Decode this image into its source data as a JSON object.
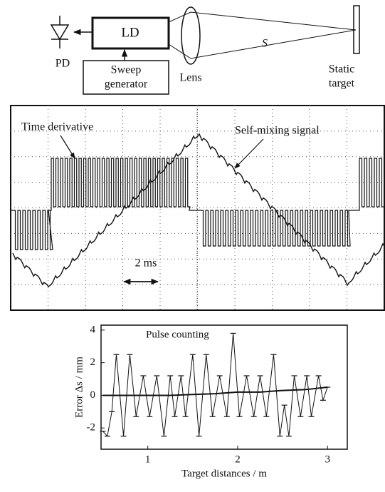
{
  "diagram": {
    "pd": "PD",
    "ld": "LD",
    "sweep": [
      "Sweep",
      "generator"
    ],
    "lens": "Lens",
    "distance": "S",
    "target": [
      "Static",
      "target"
    ]
  },
  "oscilloscope": {
    "derivative_label": "Time derivative",
    "signal_label": "Self-mixing signal",
    "scale_label": "2 ms"
  },
  "chart_data": {
    "type": "line",
    "xlabel": "Target distances / m",
    "ylabel": "Error Δs / mm",
    "xlim": [
      0.48,
      3.22
    ],
    "ylim": [
      -3.3,
      4.3
    ],
    "xticks": [
      1,
      2,
      3
    ],
    "yticks": [
      -2,
      0,
      2,
      4
    ],
    "series": [
      {
        "name": "Pulse counting",
        "color": "#111",
        "x": [
          0.5,
          0.55,
          0.6,
          0.65,
          0.73,
          0.8,
          0.87,
          0.95,
          1.02,
          1.1,
          1.18,
          1.25,
          1.3,
          1.37,
          1.42,
          1.5,
          1.57,
          1.65,
          1.72,
          1.8,
          1.88,
          1.95,
          2.02,
          2.1,
          2.18,
          2.25,
          2.32,
          2.4,
          2.47,
          2.52,
          2.57,
          2.63,
          2.7,
          2.77,
          2.82,
          2.9,
          2.95,
          3.0
        ],
        "values": [
          -2.2,
          -2.5,
          -1.0,
          2.5,
          -2.5,
          2.5,
          -1.3,
          1.2,
          -1.3,
          1.2,
          -2.5,
          1.2,
          -1.3,
          1.2,
          -1.3,
          2.5,
          -2.5,
          2.5,
          -1.3,
          1.2,
          -1.3,
          3.8,
          -1.3,
          1.2,
          -1.3,
          1.2,
          -1.3,
          2.5,
          -2.5,
          -0.6,
          -2.5,
          1.2,
          -1.3,
          1.2,
          -1.3,
          1.2,
          -0.3,
          0.5
        ]
      },
      {
        "color": "#111",
        "x": [
          0.5,
          0.75,
          1.0,
          1.25,
          1.5,
          1.75,
          2.0,
          2.25,
          2.5,
          2.75,
          3.0
        ],
        "values": [
          0,
          0,
          0,
          0,
          0.05,
          0.1,
          0.2,
          0.2,
          0.3,
          0.35,
          0.5
        ]
      }
    ]
  }
}
